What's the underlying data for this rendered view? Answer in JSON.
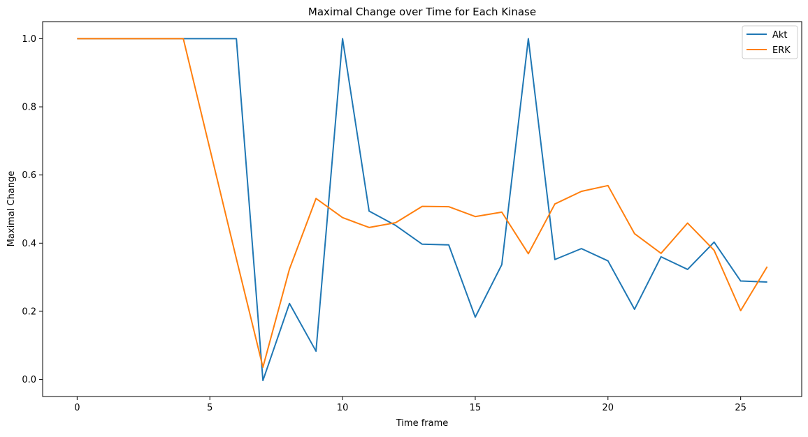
{
  "chart_data": {
    "type": "line",
    "title": "Maximal Change over Time for Each Kinase",
    "xlabel": "Time frame",
    "ylabel": "Maximal Change",
    "xlim": [
      -1.3,
      27.3
    ],
    "ylim": [
      -0.05,
      1.05
    ],
    "xticks": [
      0,
      5,
      10,
      15,
      20,
      25
    ],
    "yticks": [
      0.0,
      0.2,
      0.4,
      0.6,
      0.8,
      1.0
    ],
    "ytick_labels": [
      "0.0",
      "0.2",
      "0.4",
      "0.6",
      "0.8",
      "1.0"
    ],
    "grid": false,
    "legend_position": "upper right",
    "x": [
      0,
      1,
      2,
      3,
      4,
      5,
      6,
      7,
      8,
      9,
      10,
      11,
      12,
      13,
      14,
      15,
      16,
      17,
      18,
      19,
      20,
      21,
      22,
      23,
      24,
      25,
      26
    ],
    "series": [
      {
        "name": "Akt",
        "color": "#1f77b4",
        "values": [
          1.0,
          1.0,
          1.0,
          1.0,
          1.0,
          1.0,
          1.0,
          -0.003,
          0.223,
          0.083,
          1.0,
          0.494,
          0.452,
          0.397,
          0.395,
          0.183,
          0.337,
          1.0,
          0.352,
          0.384,
          0.348,
          0.206,
          0.36,
          0.323,
          0.403,
          0.289,
          0.286
        ]
      },
      {
        "name": "ERK",
        "color": "#ff7f0e",
        "values": [
          1.0,
          1.0,
          1.0,
          1.0,
          1.0,
          0.677,
          0.354,
          0.036,
          0.324,
          0.531,
          0.475,
          0.446,
          0.46,
          0.508,
          0.507,
          0.478,
          0.491,
          0.369,
          0.515,
          0.552,
          0.569,
          0.428,
          0.37,
          0.459,
          0.379,
          0.202,
          0.331
        ]
      }
    ]
  }
}
